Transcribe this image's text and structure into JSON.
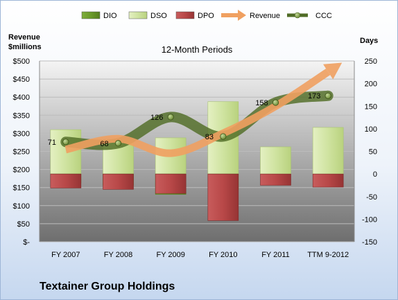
{
  "chart_data": {
    "type": "bar",
    "title": "12-Month Periods",
    "company": "Textainer Group Holdings",
    "left_axis_label": [
      "Revenue",
      "$millions"
    ],
    "right_axis_label": "Days",
    "categories": [
      "FY 2007",
      "FY 2008",
      "FY 2009",
      "FY 2010",
      "FY 2011",
      "TTM 9-2012"
    ],
    "left_axis": {
      "min": 0,
      "max": 500,
      "step": 50,
      "tick_labels": [
        "$-",
        "$50",
        "$100",
        "$150",
        "$200",
        "$250",
        "$300",
        "$350",
        "$400",
        "$450",
        "$500"
      ]
    },
    "right_axis": {
      "min": -150,
      "max": 250,
      "step": 50,
      "tick_labels": [
        "-150",
        "-100",
        "-50",
        "0",
        "50",
        "100",
        "150",
        "200",
        "250"
      ]
    },
    "legend": [
      "DIO",
      "DSO",
      "DPO",
      "Revenue",
      "CCC"
    ],
    "legend_position": "top",
    "grid": true,
    "series": [
      {
        "name": "DIO",
        "axis": "right",
        "color": "#6a9a2a",
        "values": [
          -20,
          -25,
          -45,
          -35,
          0,
          0
        ]
      },
      {
        "name": "DSO",
        "axis": "right",
        "color": "#d4e6a6",
        "values": [
          118,
          100,
          125,
          195,
          60,
          103
        ]
      },
      {
        "name": "DPO",
        "axis": "right",
        "color": "#b84848",
        "values": [
          -31,
          -34,
          -43,
          -103,
          -25,
          -29
        ]
      },
      {
        "name": "Revenue",
        "axis": "left",
        "color": "#f0a060",
        "values": [
          255,
          285,
          245,
          300,
          375,
          470
        ]
      },
      {
        "name": "CCC",
        "axis": "right",
        "color": "#506c26",
        "values": [
          71,
          68,
          126,
          83,
          158,
          173
        ],
        "data_labels": [
          "71",
          "68",
          "126",
          "83",
          "158",
          "173"
        ]
      }
    ],
    "colors": {
      "plot_bg_top": "#f4f4f4",
      "plot_bg_bottom": "#6e6e6e",
      "grid": "#bcbcbc"
    }
  }
}
